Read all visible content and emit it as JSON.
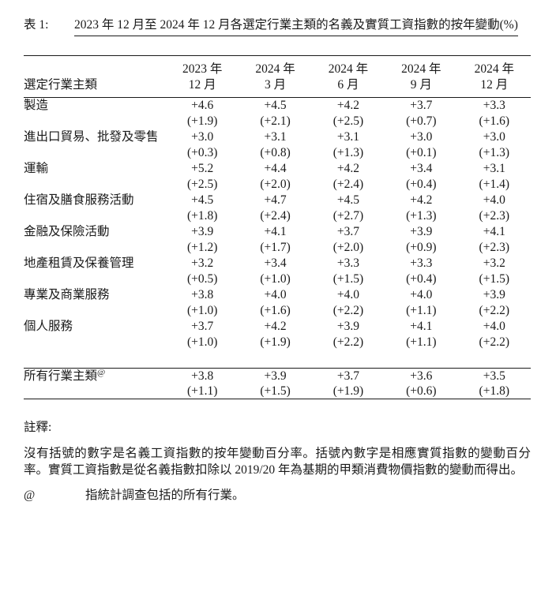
{
  "page": {
    "table_label": "表 1:",
    "title": "2023 年 12 月至 2024 年 12 月各選定行業主類的名義及實質工資指數的按年變動(%)"
  },
  "table": {
    "row_header": "選定行業主類",
    "columns": [
      {
        "year": "2023 年",
        "month": "12 月"
      },
      {
        "year": "2024 年",
        "month": "3 月"
      },
      {
        "year": "2024 年",
        "month": "6 月"
      },
      {
        "year": "2024 年",
        "month": "9 月"
      },
      {
        "year": "2024 年",
        "month": "12 月"
      }
    ],
    "rows": [
      {
        "label": "製造",
        "nominal": [
          "+4.6",
          "+4.5",
          "+4.2",
          "+3.7",
          "+3.3"
        ],
        "real": [
          "(+1.9)",
          "(+2.1)",
          "(+2.5)",
          "(+0.7)",
          "(+1.6)"
        ]
      },
      {
        "label": "進出口貿易、批發及零售",
        "nominal": [
          "+3.0",
          "+3.1",
          "+3.1",
          "+3.0",
          "+3.0"
        ],
        "real": [
          "(+0.3)",
          "(+0.8)",
          "(+1.3)",
          "(+0.1)",
          "(+1.3)"
        ]
      },
      {
        "label": "運輸",
        "nominal": [
          "+5.2",
          "+4.4",
          "+4.2",
          "+3.4",
          "+3.1"
        ],
        "real": [
          "(+2.5)",
          "(+2.0)",
          "(+2.4)",
          "(+0.4)",
          "(+1.4)"
        ]
      },
      {
        "label": "住宿及膳食服務活動",
        "nominal": [
          "+4.5",
          "+4.7",
          "+4.5",
          "+4.2",
          "+4.0"
        ],
        "real": [
          "(+1.8)",
          "(+2.4)",
          "(+2.7)",
          "(+1.3)",
          "(+2.3)"
        ]
      },
      {
        "label": "金融及保險活動",
        "nominal": [
          "+3.9",
          "+4.1",
          "+3.7",
          "+3.9",
          "+4.1"
        ],
        "real": [
          "(+1.2)",
          "(+1.7)",
          "(+2.0)",
          "(+0.9)",
          "(+2.3)"
        ]
      },
      {
        "label": "地產租賃及保養管理",
        "nominal": [
          "+3.2",
          "+3.4",
          "+3.3",
          "+3.3",
          "+3.2"
        ],
        "real": [
          "(+0.5)",
          "(+1.0)",
          "(+1.5)",
          "(+0.4)",
          "(+1.5)"
        ]
      },
      {
        "label": "專業及商業服務",
        "nominal": [
          "+3.8",
          "+4.0",
          "+4.0",
          "+4.0",
          "+3.9"
        ],
        "real": [
          "(+1.0)",
          "(+1.6)",
          "(+2.2)",
          "(+1.1)",
          "(+2.2)"
        ]
      },
      {
        "label": "個人服務",
        "nominal": [
          "+3.7",
          "+4.2",
          "+3.9",
          "+4.1",
          "+4.0"
        ],
        "real": [
          "(+1.0)",
          "(+1.9)",
          "(+2.2)",
          "(+1.1)",
          "(+2.2)"
        ]
      }
    ],
    "total_row": {
      "label": "所有行業主類",
      "superscript": "@",
      "nominal": [
        "+3.8",
        "+3.9",
        "+3.7",
        "+3.6",
        "+3.5"
      ],
      "real": [
        "(+1.1)",
        "(+1.5)",
        "(+1.9)",
        "(+0.6)",
        "(+1.8)"
      ]
    }
  },
  "notes": {
    "heading": "註釋:",
    "paragraph": "沒有括號的數字是名義工資指數的按年變動百分率。括號內數字是相應實質指數的變動百分率。實質工資指數是從名義指數扣除以 2019/20 年為基期的甲類消費物價指數的變動而得出。",
    "footnote_symbol": "@",
    "footnote_text": "指統計調查包括的所有行業。"
  }
}
